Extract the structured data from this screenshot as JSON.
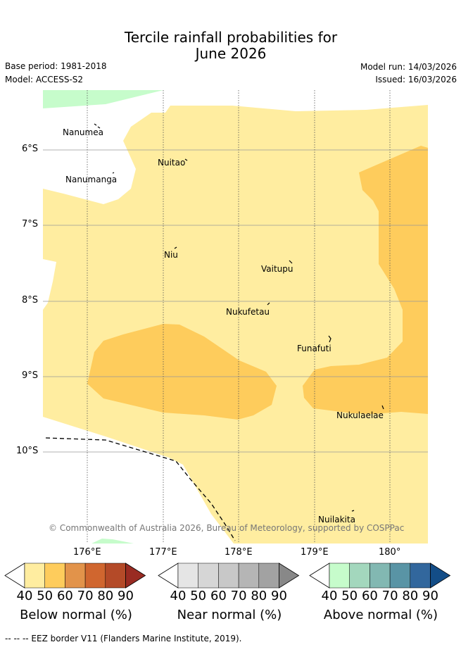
{
  "title_line1": "Tercile rainfall probabilities for",
  "title_line2": "June 2026",
  "base_period": "Base period: 1981-2018",
  "model": "Model: ACCESS-S2",
  "model_run": "Model run: 14/03/2026",
  "issued": "Issued: 16/03/2026",
  "lat_labels": [
    "6°S",
    "7°S",
    "8°S",
    "9°S",
    "10°S"
  ],
  "lon_labels": [
    "176°E",
    "177°E",
    "178°E",
    "179°E",
    "180°"
  ],
  "islands": [
    "Nanumea",
    "Nuitao",
    "Nanumanga",
    "Niu",
    "Vaitupu",
    "Nukufetau",
    "Funafuti",
    "Nukulaelae",
    "Nuilakita"
  ],
  "copyright": "© Commonwealth of Australia 2026, Bureau of Meteorology, supported by COSPPac",
  "colorbars": [
    {
      "title": "Below normal (%)",
      "ticks": [
        "40",
        "50",
        "60",
        "70",
        "80",
        "90"
      ],
      "colors": [
        "#ffffff",
        "#ffeda0",
        "#fecc5c",
        "#e2934a",
        "#d0662f",
        "#b44a28",
        "#992b22"
      ]
    },
    {
      "title": "Near normal (%)",
      "ticks": [
        "40",
        "50",
        "60",
        "70",
        "80",
        "90"
      ],
      "colors": [
        "#ffffff",
        "#e5e5e5",
        "#d6d6d6",
        "#c8c8c8",
        "#b5b5b5",
        "#a2a2a2",
        "#888888"
      ]
    },
    {
      "title": "Above normal (%)",
      "ticks": [
        "40",
        "50",
        "60",
        "70",
        "80",
        "90"
      ],
      "colors": [
        "#ffffff",
        "#c6fccb",
        "#a3d7bd",
        "#82b8b2",
        "#5994a5",
        "#32679d",
        "#134d87"
      ]
    }
  ],
  "footer": "-- -- -- EEZ border V11 (Flanders Marine Institute, 2019).",
  "colors": {
    "below_50": "#ffeda0",
    "below_60": "#fecc5c",
    "above_50": "#c6fccb",
    "grid": "#999999"
  }
}
